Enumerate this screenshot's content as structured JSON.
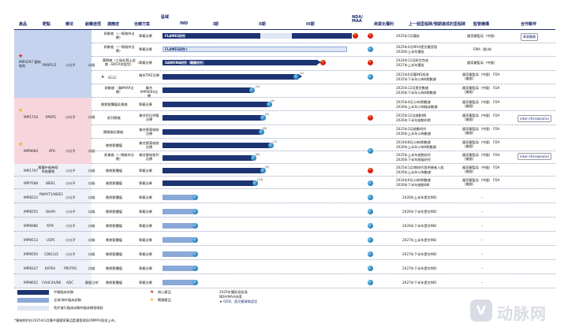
{
  "headers": {
    "product": "產品",
    "target": "靶點",
    "modality": "療法",
    "route": "給藥途徑",
    "indication": "適應症",
    "therapy": "治療方案",
    "region": "區域",
    "ind": "IND",
    "p1": "I期",
    "p2": "II期",
    "p3": "III期",
    "nda": "NDA/ MAA",
    "rights": "商業化權利",
    "milestone": "上一個里程碑/預期達成的里程碑",
    "authority": "監管機構",
    "partner": "合作夥伴"
  },
  "rows": [
    {
      "product": "IMP4297 塞納帕利",
      "target": "PARP1/2",
      "modality": "小分子",
      "route": "口服",
      "sub": [
        {
          "indication": "卵巢癌 （一線維持治療）",
          "therapy": "單藥治療",
          "bar_label": "FLAMES研究",
          "milestones": [
            "2025年1月獲批"
          ],
          "authority": "國家藥監局（中國）"
        },
        {
          "indication": "卵巢癌 （一線維持治療）",
          "therapy": "單藥治療",
          "bar_label": "FLAMES研究+",
          "milestones": [
            "2025年4月MAA提交獲受理",
            "2026年上半年獲批"
          ],
          "authority": "EMA（歐洲）"
        },
        {
          "indication": "胰腺癌（三陰乳腺上皮癌・BRCA突變型）",
          "therapy": "單藥治療",
          "bar_label": "SABRINA研究（關鍵研究）",
          "milestones": [
            "2024年12月研究完成",
            "2027年上半年獲批"
          ],
          "authority": "國家藥監局（中國）"
        },
        {
          "indication": "SCLC",
          "therapy": "聯合TMZ治療",
          "bar_label": "",
          "milestones": [
            "2021年6月獲IND批准",
            "2025年下半年公佈II期數據"
          ],
          "authority": "國家藥監局（中國） FDA（美國）"
        },
        {
          "indication": "卵巢癌 （聯PARP治療）",
          "therapy": "聯合IMP9064治療",
          "bar_label": "",
          "milestones": [
            "2025年12月提交數據",
            "2026年下半年公佈II期數據"
          ],
          "authority": "國家藥監局（中國） FDA（美國）"
        }
      ]
    },
    {
      "product": "IMP1734",
      "target": "PARP1",
      "modality": "小分子",
      "route": "口服",
      "sub": [
        {
          "indication": "晚期實體瘤乳腺癌",
          "therapy": "單藥治療",
          "milestones": [
            "2025年4月公布I期數據",
            "2026年上半年公佈臨床數據"
          ],
          "authority": "國家藥監局（中國） FDA（美國）"
        },
        {
          "indication": "前列腺癌",
          "therapy": "聯合阿比特龍治療",
          "milestones": [
            "2025年12月啟動I期",
            "2026年下半年啟動III期"
          ],
          "authority": "國家藥監局（中國） FDA（美國）"
        },
        {
          "indication": "胰腺癌乳腺癌",
          "therapy": "聯合替莫唑胺治療",
          "milestones": [
            "2025年2月啟動研究",
            "2026年上半年公佈數據"
          ],
          "authority": "國家藥監局（中國） FDA（美國）"
        }
      ]
    },
    {
      "product": "IMP9064",
      "target": "ATR",
      "modality": "小分子",
      "route": "口服",
      "sub": [
        {
          "indication": "晚期實體瘤",
          "therapy": "聯合替莫唑胺治療",
          "milestones": [
            "2024年8月公佈I期數據",
            "2026年上半年公佈II期數據"
          ],
          "authority": "國家藥監局（中國） FDA（美國）"
        },
        {
          "indication": "卵巢癌（一線維持治療）",
          "therapy": "聯合塞納帕利治療",
          "milestones": [
            "2025年上半年啟動研究",
            "2026年下半年開展研究"
          ],
          "authority": "國家藥監局（中國） FDA（美國）"
        }
      ]
    },
    {
      "product": "IMP1707",
      "target": "腎臟中樞神經系統藥物",
      "modality": "小分子",
      "route": "口服",
      "indication": "晚期實體瘤",
      "therapy": "單藥治療",
      "milestones": [
        "2025年1月I期研究首例患者入組",
        "2026年上半年公佈數據"
      ],
      "authority": "國家藥監局（中國） FDA（美國）"
    },
    {
      "product": "IMP7068",
      "target": "WEE1",
      "modality": "小分子",
      "route": "口服",
      "indication": "晚期實體瘤",
      "therapy": "單藥治療",
      "milestones": [
        "2024年9月公佈I期數據",
        "2026年下半年啟動II期"
      ],
      "authority": "國家藥監局（中國） FDA（美國）"
    },
    {
      "product": "IMP8222",
      "target": "PKMYT1/WEE1",
      "modality": "小分子",
      "route": "口服",
      "indication": "晚期實體瘤",
      "therapy": "單藥治療",
      "milestones": [
        "2026年上半年提交IND"
      ],
      "authority": "–"
    },
    {
      "product": "IMP8255",
      "target": "DHX9",
      "modality": "小分子",
      "route": "口服",
      "indication": "晚期實體瘤",
      "therapy": "單藥治療",
      "milestones": [
        "2026年下半年提交IND"
      ],
      "authority": "–"
    },
    {
      "product": "IMP8986",
      "target": "ATM",
      "modality": "小分子",
      "route": "口服",
      "indication": "晚期實體瘤",
      "therapy": "單藥治療",
      "milestones": [
        "2026年下半年提交IND"
      ],
      "authority": "–"
    },
    {
      "product": "IMP8513",
      "target": "USP1",
      "modality": "小分子",
      "route": "口服",
      "indication": "晚期實體瘤",
      "therapy": "單藥治療",
      "milestones": [
        "2027年上半年提交IND"
      ],
      "authority": "–"
    },
    {
      "product": "IMP8550",
      "target": "CDKL5/2",
      "modality": "小分子",
      "route": "口服",
      "indication": "晚期實體瘤",
      "therapy": "單藥治療",
      "milestones": [
        "2027年下半年提交IND"
      ],
      "authority": "–"
    },
    {
      "product": "IMP8327",
      "target": "KAT6A",
      "modality": "PROTAC",
      "route": "口服",
      "indication": "晚期實體瘤",
      "therapy": "單藥治療",
      "milestones": [
        "2027年下半年提交IND"
      ],
      "authority": "–"
    },
    {
      "product": "IMP8652",
      "target": "CAHC4A/B6",
      "modality": "ADC",
      "route": "靜脈注射",
      "indication": "晚期實體瘤",
      "therapy": "單藥治療",
      "milestones": [
        "2027年下半年提交IND"
      ],
      "authority": "–"
    }
  ],
  "partners": {
    "row1": "華東醫藥",
    "row2": "eikon therapeutics",
    "row3": "eikon therapeutics"
  },
  "legend": {
    "pivotal": "中樞臨床試驗",
    "global": "全球/海外臨床試驗",
    "free": "免於進行臨床試驗的臨床開發階段",
    "core": "核心產品",
    "key": "關鍵產品",
    "approved": "2025年獲批准批准",
    "nda_filed": "NDA/MAA申請",
    "odd": "★ ODD、孤兒藥資格認定"
  },
  "footnote": "*塞納帕利在2025年1月獲中國國家藥品監督管理局(NMPA)批准上市。",
  "watermark": "动脉网",
  "colors": {
    "navy": "#1d3472",
    "light_blue": "#8aa8d8",
    "pink_band": "#f6d6dc",
    "blue_band": "#c5d3ee",
    "red": "#d7261e",
    "gold": "#f2b21b"
  }
}
